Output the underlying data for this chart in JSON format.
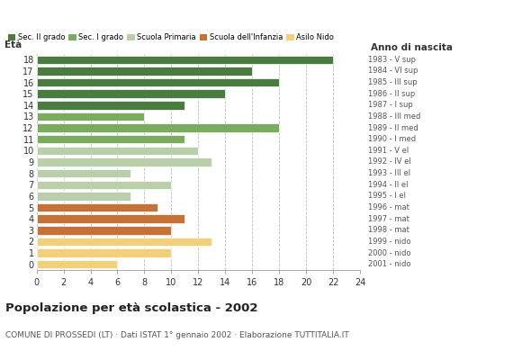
{
  "ages": [
    18,
    17,
    16,
    15,
    14,
    13,
    12,
    11,
    10,
    9,
    8,
    7,
    6,
    5,
    4,
    3,
    2,
    1,
    0
  ],
  "values": [
    22,
    16,
    18,
    14,
    11,
    8,
    18,
    11,
    12,
    13,
    7,
    10,
    7,
    9,
    11,
    10,
    13,
    10,
    6
  ],
  "colors": [
    "#4a7c3f",
    "#4a7c3f",
    "#4a7c3f",
    "#4a7c3f",
    "#4a7c3f",
    "#7aab5e",
    "#7aab5e",
    "#7aab5e",
    "#b8cfaa",
    "#b8cfaa",
    "#b8cfaa",
    "#b8cfaa",
    "#b8cfaa",
    "#c87137",
    "#c87137",
    "#c87137",
    "#f2d07a",
    "#f2d07a",
    "#f2d07a"
  ],
  "right_labels": [
    "1983 - V sup",
    "1984 - VI sup",
    "1985 - III sup",
    "1986 - II sup",
    "1987 - I sup",
    "1988 - III med",
    "1989 - II med",
    "1990 - I med",
    "1991 - V el",
    "1992 - IV el",
    "1993 - III el",
    "1994 - II el",
    "1995 - I el",
    "1996 - mat",
    "1997 - mat",
    "1998 - mat",
    "1999 - nido",
    "2000 - nido",
    "2001 - nido"
  ],
  "legend_labels": [
    "Sec. II grado",
    "Sec. I grado",
    "Scuola Primaria",
    "Scuola dell'Infanzia",
    "Asilo Nido"
  ],
  "legend_colors": [
    "#4a7c3f",
    "#7aab5e",
    "#b8cfaa",
    "#c87137",
    "#f2d07a"
  ],
  "title": "Popolazione per età scolastica - 2002",
  "subtitle": "COMUNE DI PROSSEDI (LT) · Dati ISTAT 1° gennaio 2002 · Elaborazione TUTTITALIA.IT",
  "xlabel_age": "Età",
  "xlabel_birth": "Anno di nascita",
  "xlim": [
    0,
    24
  ],
  "xticks": [
    0,
    2,
    4,
    6,
    8,
    10,
    12,
    14,
    16,
    18,
    20,
    22,
    24
  ],
  "bar_height": 0.75,
  "background_color": "#ffffff",
  "grid_color": "#bbbbbb"
}
